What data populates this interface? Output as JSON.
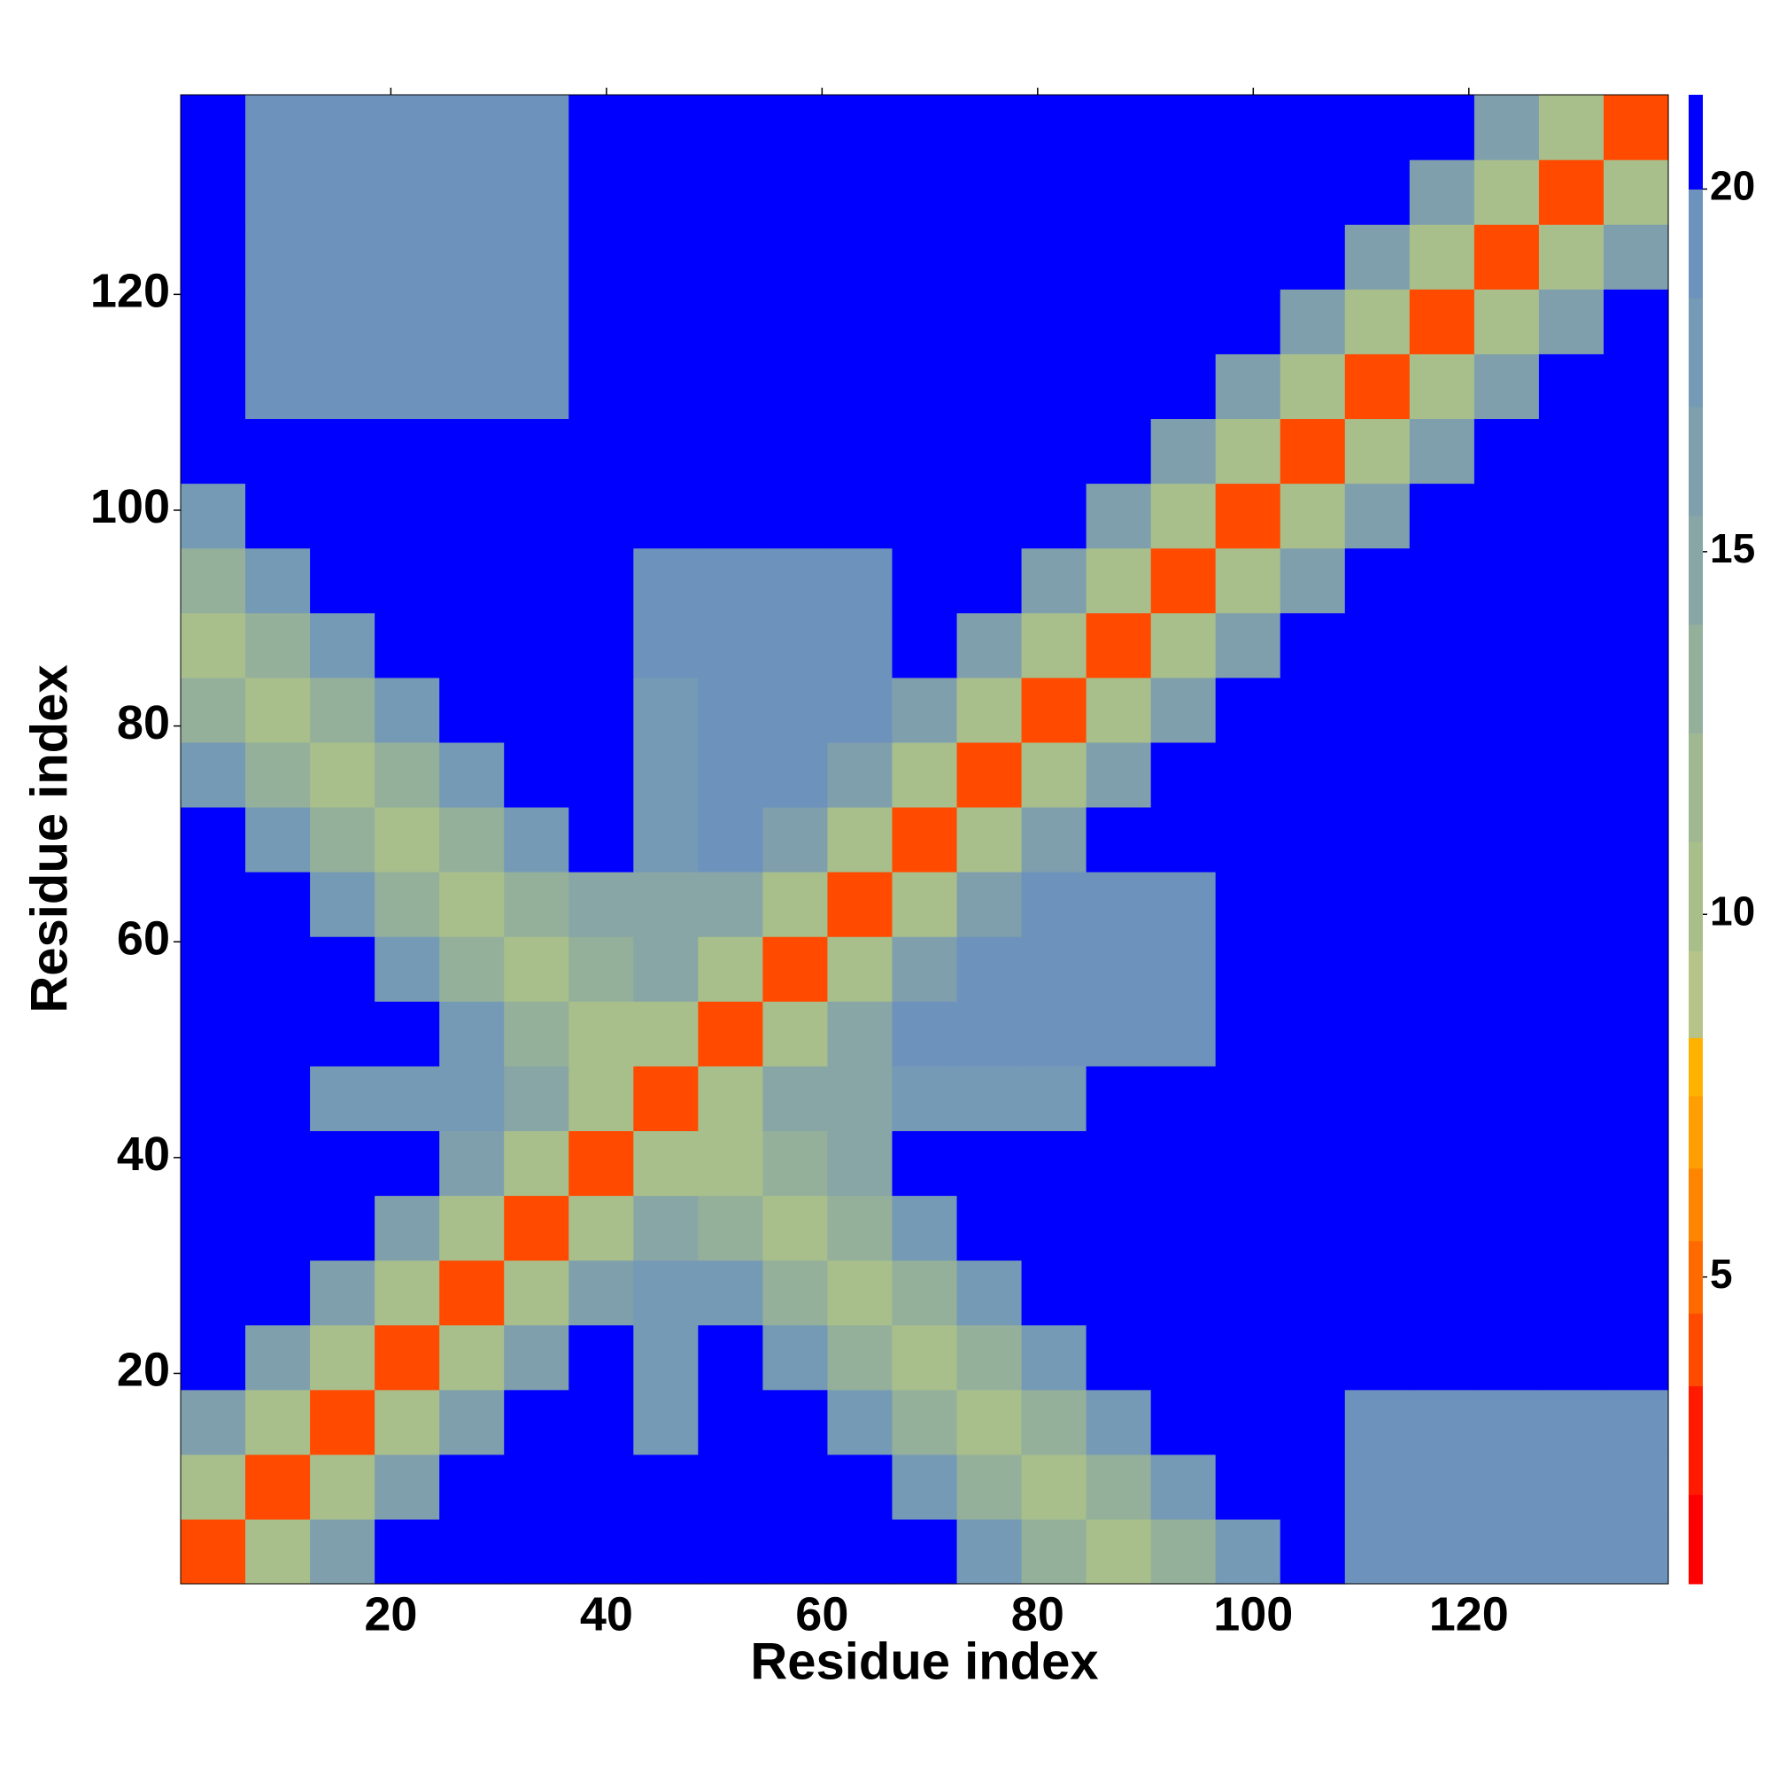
{
  "chart_data": {
    "type": "heatmap",
    "xlabel": "Residue index",
    "ylabel": "Residue index",
    "xlim": [
      0.5,
      138.5
    ],
    "ylim": [
      0.5,
      138.5
    ],
    "xticks": [
      20,
      40,
      60,
      80,
      100,
      120
    ],
    "yticks": [
      20,
      40,
      60,
      80,
      100,
      120
    ],
    "xbins": [
      0.5,
      6.5,
      12.5,
      18.5,
      24.5,
      30.5,
      36.5,
      42.5,
      48.5,
      54.5,
      60.5,
      66.5,
      72.5,
      78.5,
      84.5,
      90.5,
      96.5,
      102.5,
      108.5,
      114.5,
      120.5,
      126.5,
      132.5,
      138.5
    ],
    "ybins": [
      0.5,
      6.5,
      12.5,
      18.5,
      24.5,
      30.5,
      36.5,
      42.5,
      48.5,
      54.5,
      60.5,
      66.5,
      72.5,
      78.5,
      84.5,
      90.5,
      96.5,
      102.5,
      108.5,
      114.5,
      120.5,
      126.5,
      132.5,
      138.5
    ],
    "z": [
      [
        3.5,
        10,
        16,
        21,
        21,
        21,
        21,
        21,
        21,
        21,
        21,
        21,
        17,
        13,
        10,
        13,
        17,
        21,
        19.5,
        19.5,
        19.5,
        19.5,
        19.5
      ],
      [
        10,
        3.5,
        10,
        16,
        21,
        21,
        21,
        21,
        21,
        21,
        21,
        17,
        13,
        10,
        13,
        17,
        21,
        21,
        19.5,
        19.5,
        19.5,
        19.5,
        19.5
      ],
      [
        16,
        10,
        3.5,
        10,
        16,
        21,
        21,
        17,
        21,
        21,
        17,
        13,
        10,
        13,
        17,
        21,
        21,
        21,
        19.5,
        19.5,
        19.5,
        19.5,
        19.5
      ],
      [
        21,
        16,
        10,
        3.5,
        10,
        16,
        21,
        17,
        21,
        17,
        13,
        10,
        13,
        17,
        21,
        21,
        21,
        21,
        21,
        21,
        21,
        21,
        21
      ],
      [
        21,
        21,
        16,
        10,
        3.5,
        10,
        16,
        17,
        17,
        13,
        10,
        13,
        17,
        21,
        21,
        21,
        21,
        21,
        21,
        21,
        21,
        21,
        21
      ],
      [
        21,
        21,
        21,
        16,
        10,
        3.5,
        10,
        15,
        13,
        10,
        13,
        17,
        21,
        21,
        21,
        21,
        21,
        21,
        21,
        21,
        21,
        21,
        21
      ],
      [
        21,
        21,
        21,
        21,
        16,
        10,
        3.5,
        10,
        10,
        13,
        15,
        21,
        21,
        21,
        21,
        21,
        21,
        21,
        21,
        21,
        21,
        21,
        21
      ],
      [
        21,
        21,
        17,
        17,
        17,
        15,
        10,
        3.5,
        10,
        15,
        15,
        17,
        17,
        17,
        21,
        21,
        21,
        21,
        21,
        21,
        21,
        21,
        21
      ],
      [
        21,
        21,
        21,
        21,
        17,
        13,
        10,
        10,
        3.5,
        10,
        15,
        19,
        19,
        19,
        19,
        19,
        21,
        21,
        21,
        21,
        21,
        21,
        21
      ],
      [
        21,
        21,
        21,
        17,
        13,
        10,
        13,
        15,
        10,
        3.5,
        10,
        16,
        19,
        19,
        19,
        19,
        21,
        21,
        21,
        21,
        21,
        21,
        21
      ],
      [
        21,
        21,
        17,
        13,
        10,
        13,
        15,
        15,
        15,
        10,
        3.5,
        10,
        16,
        19,
        19,
        19,
        21,
        21,
        21,
        21,
        21,
        21,
        21
      ],
      [
        21,
        17,
        13,
        10,
        13,
        17,
        21,
        17,
        19,
        16,
        10,
        3.5,
        10,
        16,
        21,
        21,
        21,
        21,
        21,
        21,
        21,
        21,
        21
      ],
      [
        17,
        13,
        10,
        13,
        17,
        21,
        21,
        17,
        19,
        19,
        16,
        10,
        3.5,
        10,
        16,
        21,
        21,
        21,
        21,
        21,
        21,
        21,
        21
      ],
      [
        13,
        10,
        13,
        17,
        21,
        21,
        21,
        17,
        19,
        19,
        19,
        16,
        10,
        3.5,
        10,
        16,
        21,
        21,
        21,
        21,
        21,
        21,
        21
      ],
      [
        10,
        13,
        17,
        21,
        21,
        21,
        21,
        19,
        19,
        19,
        19,
        21,
        16,
        10,
        3.5,
        10,
        16,
        21,
        21,
        21,
        21,
        21,
        21
      ],
      [
        13,
        17,
        21,
        21,
        21,
        21,
        21,
        19,
        19,
        19,
        19,
        21,
        21,
        16,
        10,
        3.5,
        10,
        16,
        21,
        21,
        21,
        21,
        21
      ],
      [
        17,
        21,
        21,
        21,
        21,
        21,
        21,
        21,
        21,
        21,
        21,
        21,
        21,
        21,
        16,
        10,
        3.5,
        10,
        16,
        21,
        21,
        21,
        21
      ],
      [
        21,
        21,
        21,
        21,
        21,
        21,
        21,
        21,
        21,
        21,
        21,
        21,
        21,
        21,
        21,
        16,
        10,
        3.5,
        10,
        16,
        21,
        21,
        21
      ],
      [
        21,
        19.5,
        19.5,
        19.5,
        19.5,
        19.5,
        21,
        21,
        21,
        21,
        21,
        21,
        21,
        21,
        21,
        21,
        16,
        10,
        3.5,
        10,
        16,
        21,
        21
      ],
      [
        21,
        19.5,
        19.5,
        19.5,
        19.5,
        19.5,
        21,
        21,
        21,
        21,
        21,
        21,
        21,
        21,
        21,
        21,
        21,
        16,
        10,
        3.5,
        10,
        16,
        21
      ],
      [
        21,
        19.5,
        19.5,
        19.5,
        19.5,
        19.5,
        21,
        21,
        21,
        21,
        21,
        21,
        21,
        21,
        21,
        21,
        21,
        21,
        16,
        10,
        3.5,
        10,
        16
      ],
      [
        21,
        19.5,
        19.5,
        19.5,
        19.5,
        19.5,
        21,
        21,
        21,
        21,
        21,
        21,
        21,
        21,
        21,
        21,
        21,
        21,
        21,
        16,
        10,
        3.5,
        10
      ],
      [
        21,
        19.5,
        19.5,
        19.5,
        19.5,
        19.5,
        21,
        21,
        21,
        21,
        21,
        21,
        21,
        21,
        21,
        21,
        21,
        21,
        21,
        21,
        16,
        10,
        3.5
      ]
    ],
    "colorbar": {
      "lim": [
        0.77,
        21.3
      ],
      "ticks": [
        5,
        10,
        15,
        20
      ],
      "bounds": [
        0.77,
        2,
        3.5,
        4.5,
        5.5,
        6.5,
        7.5,
        8.3,
        9.5,
        11,
        12.5,
        14,
        15.5,
        17,
        18.5,
        20,
        21.3
      ],
      "colors": [
        "#ff0000",
        "#ff1a00",
        "#ff4a00",
        "#ff6a00",
        "#ff8400",
        "#ff9e00",
        "#ffb300",
        "#b6c48a",
        "#a8bf8c",
        "#9fb892",
        "#94b09a",
        "#88a6a5",
        "#7f9fad",
        "#759ab6",
        "#6d93bc",
        "#0000ff"
      ]
    }
  }
}
